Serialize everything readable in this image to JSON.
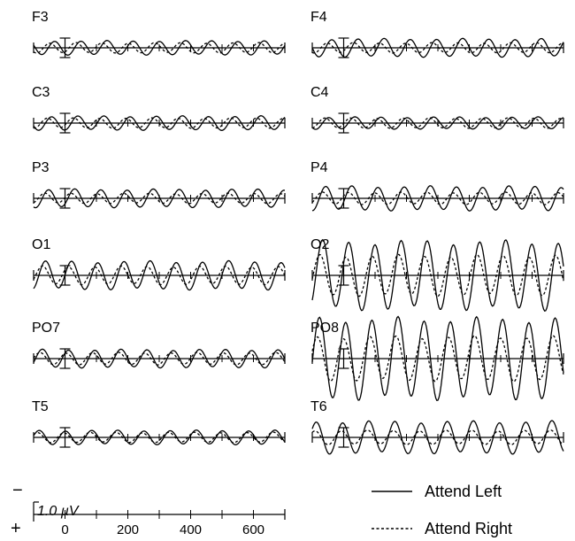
{
  "chart_data": {
    "type": "line",
    "x_unit": "ms",
    "x_ticks": [
      0,
      200,
      400,
      600
    ],
    "xlim": [
      -100,
      700
    ],
    "scale_bar": {
      "label": "1.0 µV",
      "value": 1.0,
      "polarity_negative": "−",
      "polarity_positive": "+"
    },
    "legend": [
      {
        "series": "Attend Left",
        "style": "solid"
      },
      {
        "series": "Attend Right",
        "style": "dashed"
      }
    ],
    "line_color": "#000000",
    "stimulation_frequency_hz": 12,
    "panels": [
      {
        "label": "F3",
        "column": "left",
        "row": 1,
        "attend_left_amplitude_uv": 0.35,
        "attend_right_amplitude_uv": 0.25
      },
      {
        "label": "F4",
        "column": "right",
        "row": 1,
        "attend_left_amplitude_uv": 0.45,
        "attend_right_amplitude_uv": 0.25
      },
      {
        "label": "C3",
        "column": "left",
        "row": 2,
        "attend_left_amplitude_uv": 0.35,
        "attend_right_amplitude_uv": 0.25
      },
      {
        "label": "C4",
        "column": "right",
        "row": 2,
        "attend_left_amplitude_uv": 0.3,
        "attend_right_amplitude_uv": 0.25
      },
      {
        "label": "P3",
        "column": "left",
        "row": 3,
        "attend_left_amplitude_uv": 0.45,
        "attend_right_amplitude_uv": 0.25
      },
      {
        "label": "P4",
        "column": "right",
        "row": 3,
        "attend_left_amplitude_uv": 0.6,
        "attend_right_amplitude_uv": 0.3
      },
      {
        "label": "O1",
        "column": "left",
        "row": 4,
        "attend_left_amplitude_uv": 0.7,
        "attend_right_amplitude_uv": 0.45
      },
      {
        "label": "O2",
        "column": "right",
        "row": 4,
        "attend_left_amplitude_uv": 1.7,
        "attend_right_amplitude_uv": 1.0
      },
      {
        "label": "PO7",
        "column": "left",
        "row": 5,
        "attend_left_amplitude_uv": 0.45,
        "attend_right_amplitude_uv": 0.3
      },
      {
        "label": "PO8",
        "column": "right",
        "row": 5,
        "attend_left_amplitude_uv": 2.0,
        "attend_right_amplitude_uv": 1.1
      },
      {
        "label": "T5",
        "column": "left",
        "row": 6,
        "attend_left_amplitude_uv": 0.35,
        "attend_right_amplitude_uv": 0.25
      },
      {
        "label": "T6",
        "column": "right",
        "row": 6,
        "attend_left_amplitude_uv": 0.8,
        "attend_right_amplitude_uv": 0.35
      }
    ]
  }
}
